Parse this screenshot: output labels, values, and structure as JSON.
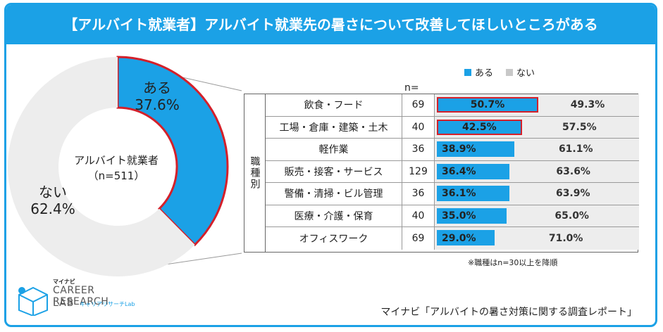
{
  "title": "【アルバイト就業者】アルバイト就業先の暑さについて改善してほしいところがある",
  "colors": {
    "accent": "#1ba1e6",
    "no": "#ededed",
    "highlight": "#d4202a"
  },
  "chart_data": [
    {
      "type": "pie",
      "variant": "donut",
      "center_label": "アルバイト就業者",
      "center_sublabel": "（n=511）",
      "slices": [
        {
          "label": "ある",
          "value": 37.6,
          "text": "37.6%"
        },
        {
          "label": "ない",
          "value": 62.4,
          "text": "62.4%"
        }
      ]
    },
    {
      "type": "bar",
      "orientation": "horizontal",
      "stacked": "percent",
      "category_header": "職種別",
      "n_header": "n=",
      "legend": [
        "ある",
        "ない"
      ],
      "rows": [
        {
          "category": "飲食・フード",
          "n": "69",
          "yes": 50.7,
          "no": 49.3,
          "yes_text": "50.7%",
          "no_text": "49.3%",
          "highlight": true
        },
        {
          "category": "工場・倉庫・建築・土木",
          "n": "40",
          "yes": 42.5,
          "no": 57.5,
          "yes_text": "42.5%",
          "no_text": "57.5%",
          "highlight": true
        },
        {
          "category": "軽作業",
          "n": "36",
          "yes": 38.9,
          "no": 61.1,
          "yes_text": "38.9%",
          "no_text": "61.1%",
          "highlight": false
        },
        {
          "category": "販売・接客・サービス",
          "n": "129",
          "yes": 36.4,
          "no": 63.6,
          "yes_text": "36.4%",
          "no_text": "63.6%",
          "highlight": false
        },
        {
          "category": "警備・清掃・ビル管理",
          "n": "36",
          "yes": 36.1,
          "no": 63.9,
          "yes_text": "36.1%",
          "no_text": "63.9%",
          "highlight": false
        },
        {
          "category": "医療・介護・保育",
          "n": "40",
          "yes": 35.0,
          "no": 65.0,
          "yes_text": "35.0%",
          "no_text": "65.0%",
          "highlight": false
        },
        {
          "category": "オフィスワーク",
          "n": "69",
          "yes": 29.0,
          "no": 71.0,
          "yes_text": "29.0%",
          "no_text": "71.0%",
          "highlight": false
        }
      ],
      "note": "※職種はn=30以上を降順"
    }
  ],
  "logo": {
    "tag": "マイナビ",
    "line1": "CAREER RESEARCH",
    "line2": "LAB",
    "line3": "キャリアリサーチLab"
  },
  "source": "マイナビ「アルバイトの暑さ対策に関する調査レポート」"
}
